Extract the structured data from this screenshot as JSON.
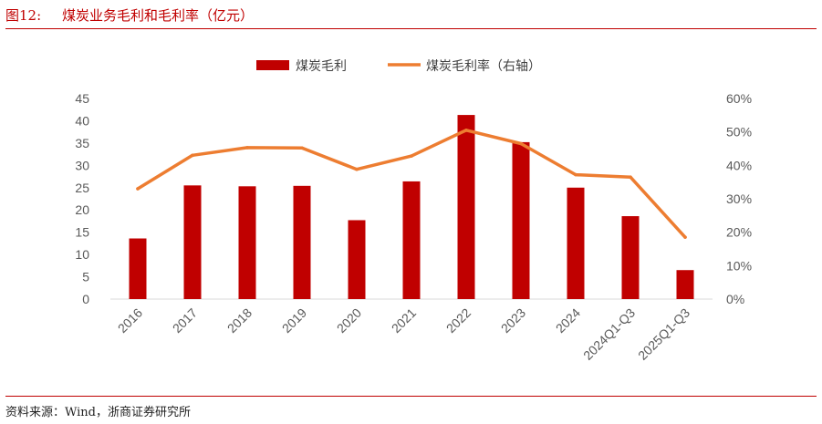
{
  "header": {
    "figure_number": "图12:",
    "title": "煤炭业务毛利和毛利率（亿元）"
  },
  "source": "资料来源：Wind，浙商证券研究所",
  "colors": {
    "accent": "#c00000",
    "bar": "#c00000",
    "line": "#ed7d31",
    "axis_text": "#595959",
    "axis_line": "#d9d9d9"
  },
  "chart_data": {
    "type": "bar",
    "categories": [
      "2016",
      "2017",
      "2018",
      "2019",
      "2020",
      "2021",
      "2022",
      "2023",
      "2024",
      "2024Q1-Q3",
      "2025Q1-Q3"
    ],
    "series": [
      {
        "name": "煤炭毛利",
        "type": "bar",
        "axis": "left",
        "values": [
          13.6,
          25.5,
          25.3,
          25.4,
          17.7,
          26.4,
          41.3,
          35.2,
          25.0,
          18.6,
          6.5
        ]
      },
      {
        "name": "煤炭毛利率（右轴）",
        "type": "line",
        "axis": "right",
        "values": [
          0.33,
          0.43,
          0.453,
          0.452,
          0.388,
          0.428,
          0.505,
          0.465,
          0.372,
          0.365,
          0.185
        ]
      }
    ],
    "left_axis": {
      "ylim": [
        0,
        45
      ],
      "ticks": [
        "0",
        "5",
        "10",
        "15",
        "20",
        "25",
        "30",
        "35",
        "40",
        "45"
      ]
    },
    "right_axis": {
      "ylim": [
        0,
        0.6
      ],
      "ticks": [
        "0%",
        "10%",
        "20%",
        "30%",
        "40%",
        "50%",
        "60%"
      ]
    },
    "legend_position": "top-center",
    "grid": false,
    "xlabel": "",
    "ylabel": ""
  }
}
